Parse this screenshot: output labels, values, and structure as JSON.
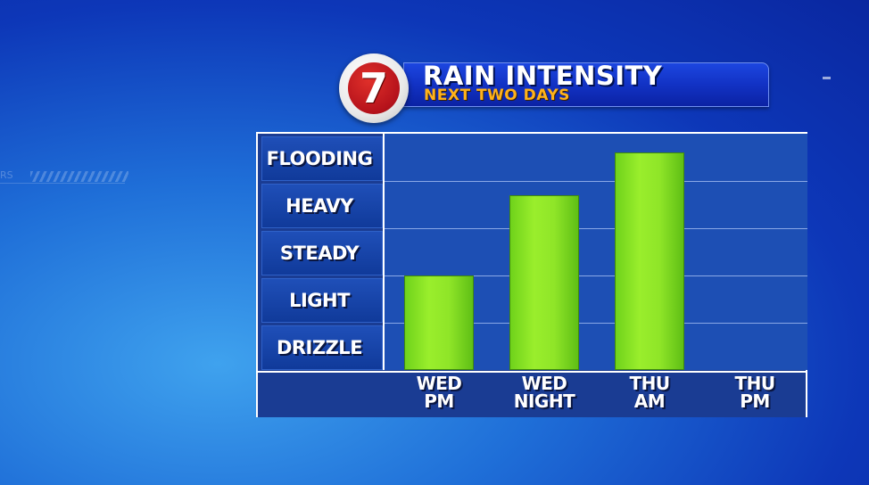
{
  "header": {
    "logo_text": "7",
    "title": "RAIN INTENSITY",
    "subtitle": "NEXT TWO DAYS"
  },
  "chart_data": {
    "type": "bar",
    "title": "RAIN INTENSITY",
    "subtitle": "NEXT TWO DAYS",
    "categories": [
      {
        "line1": "WED",
        "line2": "PM"
      },
      {
        "line1": "WED",
        "line2": "NIGHT"
      },
      {
        "line1": "THU",
        "line2": "AM"
      },
      {
        "line1": "THU",
        "line2": "PM"
      }
    ],
    "levels": [
      "DRIZZLE",
      "LIGHT",
      "STEADY",
      "HEAVY",
      "FLOODING"
    ],
    "values": [
      2.0,
      3.7,
      4.6,
      0
    ],
    "ylim": [
      0,
      5
    ],
    "grid": true,
    "colors": {
      "bar": "#8fe528",
      "panel": "#1a3c93",
      "plot": "#1d4fb4",
      "title": "#ffffff",
      "subtitle": "#ffb21a"
    }
  }
}
